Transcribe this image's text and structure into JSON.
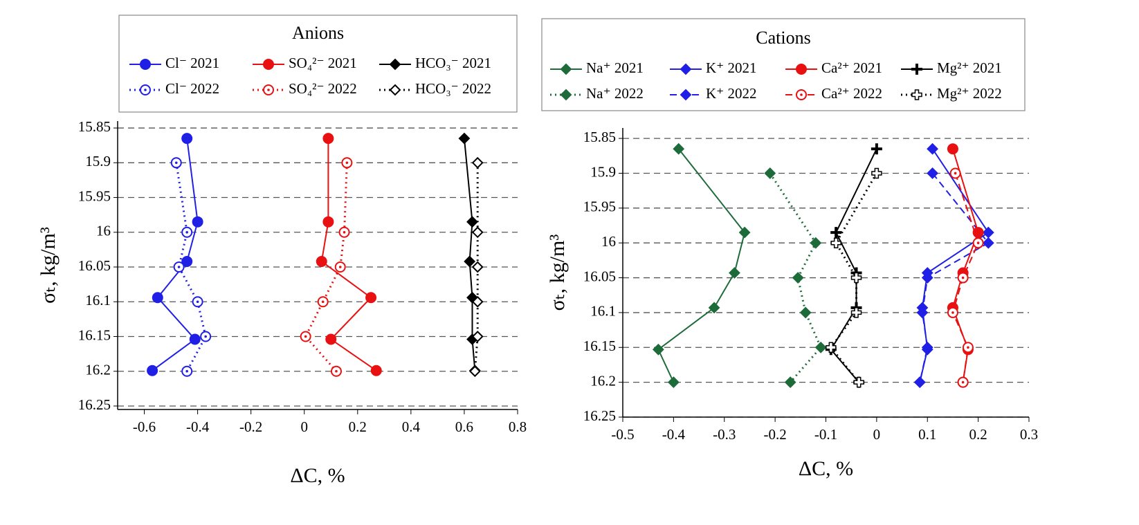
{
  "chart_data": [
    {
      "type": "line",
      "title": "Anions",
      "xlabel": "ΔC, %",
      "ylabel": "σₜ, kg/m³",
      "xlim": [
        -0.7,
        0.8
      ],
      "ylim": [
        15.84,
        16.255
      ],
      "y_inverted": true,
      "grid": true,
      "xticks": [
        -0.6,
        -0.4,
        -0.2,
        0,
        0.2,
        0.4,
        0.6,
        0.8
      ],
      "yticks": [
        15.85,
        15.9,
        15.95,
        16,
        16.05,
        16.1,
        16.15,
        16.2,
        16.25
      ],
      "series": [
        {
          "name": "Cl⁻ 2021",
          "color": "#1f1fe6",
          "marker": "circle",
          "filled": true,
          "dash": "solid",
          "x": [
            -0.44,
            -0.4,
            -0.44,
            -0.55,
            -0.41,
            -0.57
          ],
          "y": [
            15.865,
            15.985,
            16.042,
            16.094,
            16.154,
            16.199
          ]
        },
        {
          "name": "Cl⁻ 2022",
          "color": "#1f1fe6",
          "marker": "circle",
          "filled": false,
          "dash": "dotted",
          "x": [
            -0.48,
            -0.44,
            -0.47,
            -0.4,
            -0.37,
            -0.44
          ],
          "y": [
            15.9,
            16.0,
            16.05,
            16.1,
            16.15,
            16.2
          ]
        },
        {
          "name": "SO₄²⁻ 2021",
          "color": "#e81010",
          "marker": "circle",
          "filled": true,
          "dash": "solid",
          "x": [
            0.09,
            0.09,
            0.065,
            0.25,
            0.1,
            0.27
          ],
          "y": [
            15.865,
            15.985,
            16.042,
            16.094,
            16.154,
            16.199
          ]
        },
        {
          "name": "SO₄²⁻ 2022",
          "color": "#e81010",
          "marker": "circle",
          "filled": false,
          "dash": "dotted",
          "x": [
            0.16,
            0.15,
            0.135,
            0.07,
            0.005,
            0.12
          ],
          "y": [
            15.9,
            16.0,
            16.05,
            16.1,
            16.15,
            16.2
          ]
        },
        {
          "name": "HCO₃⁻ 2021",
          "color": "#000000",
          "marker": "diamond",
          "filled": true,
          "dash": "solid",
          "x": [
            0.6,
            0.63,
            0.62,
            0.63,
            0.63,
            0.64
          ],
          "y": [
            15.865,
            15.985,
            16.042,
            16.094,
            16.154,
            16.199
          ]
        },
        {
          "name": "HCO₃⁻ 2022",
          "color": "#000000",
          "marker": "diamond",
          "filled": false,
          "dash": "dotted",
          "x": [
            0.65,
            0.65,
            0.65,
            0.65,
            0.65,
            0.64
          ],
          "y": [
            15.9,
            16.0,
            16.05,
            16.1,
            16.15,
            16.2
          ]
        }
      ]
    },
    {
      "type": "line",
      "title": "Cations",
      "xlabel": "ΔC, %",
      "ylabel": "σₜ, kg/m³",
      "xlim": [
        -0.5,
        0.3
      ],
      "ylim": [
        15.835,
        16.25
      ],
      "y_inverted": true,
      "grid": true,
      "xticks": [
        -0.5,
        -0.4,
        -0.3,
        -0.2,
        -0.1,
        0,
        0.1,
        0.2,
        0.3
      ],
      "yticks": [
        15.85,
        15.9,
        15.95,
        16,
        16.05,
        16.1,
        16.15,
        16.2,
        16.25
      ],
      "series": [
        {
          "name": "Na⁺ 2021",
          "color": "#1e6b3a",
          "marker": "diamond",
          "filled": true,
          "dash": "solid",
          "x": [
            -0.39,
            -0.26,
            -0.28,
            -0.32,
            -0.43,
            -0.4
          ],
          "y": [
            15.865,
            15.985,
            16.043,
            16.093,
            16.153,
            16.2
          ]
        },
        {
          "name": "Na⁺ 2022",
          "color": "#1e6b3a",
          "marker": "diamond",
          "filled": true,
          "dash": "dotted",
          "x": [
            -0.21,
            -0.12,
            -0.155,
            -0.14,
            -0.11,
            -0.17
          ],
          "y": [
            15.9,
            16.0,
            16.05,
            16.1,
            16.15,
            16.2
          ]
        },
        {
          "name": "K⁺ 2021",
          "color": "#1f1fe6",
          "marker": "diamond",
          "filled": true,
          "dash": "solid",
          "x": [
            0.11,
            0.22,
            0.1,
            0.09,
            0.1,
            0.085
          ],
          "y": [
            15.865,
            15.985,
            16.043,
            16.093,
            16.153,
            16.2
          ]
        },
        {
          "name": "K⁺ 2022",
          "color": "#1f1fe6",
          "marker": "diamond",
          "filled": true,
          "dash": "dashed",
          "x": [
            0.11,
            0.22,
            0.1,
            0.09,
            0.1,
            0.085
          ],
          "y": [
            15.9,
            16.0,
            16.05,
            16.1,
            16.15,
            16.2
          ]
        },
        {
          "name": "Ca²⁺ 2021",
          "color": "#e81010",
          "marker": "circle",
          "filled": true,
          "dash": "solid",
          "x": [
            0.15,
            0.2,
            0.17,
            0.15,
            0.18,
            0.17
          ],
          "y": [
            15.865,
            15.985,
            16.043,
            16.093,
            16.153,
            16.2
          ]
        },
        {
          "name": "Ca²⁺ 2022",
          "color": "#e81010",
          "marker": "circle",
          "filled": false,
          "dash": "dashed",
          "x": [
            0.155,
            0.2,
            0.17,
            0.15,
            0.18,
            0.17
          ],
          "y": [
            15.9,
            16.0,
            16.05,
            16.1,
            16.15,
            16.2
          ]
        },
        {
          "name": "Mg²⁺ 2021",
          "color": "#000000",
          "marker": "plus",
          "filled": true,
          "dash": "solid",
          "x": [
            0.0,
            -0.08,
            -0.04,
            -0.04,
            -0.09,
            -0.035
          ],
          "y": [
            15.865,
            15.985,
            16.043,
            16.093,
            16.153,
            16.2
          ]
        },
        {
          "name": "Mg²⁺ 2022",
          "color": "#000000",
          "marker": "plus",
          "filled": false,
          "dash": "dotted",
          "x": [
            0.0,
            -0.08,
            -0.04,
            -0.04,
            -0.09,
            -0.035
          ],
          "y": [
            15.9,
            16.0,
            16.05,
            16.1,
            16.15,
            16.2
          ]
        }
      ]
    }
  ]
}
